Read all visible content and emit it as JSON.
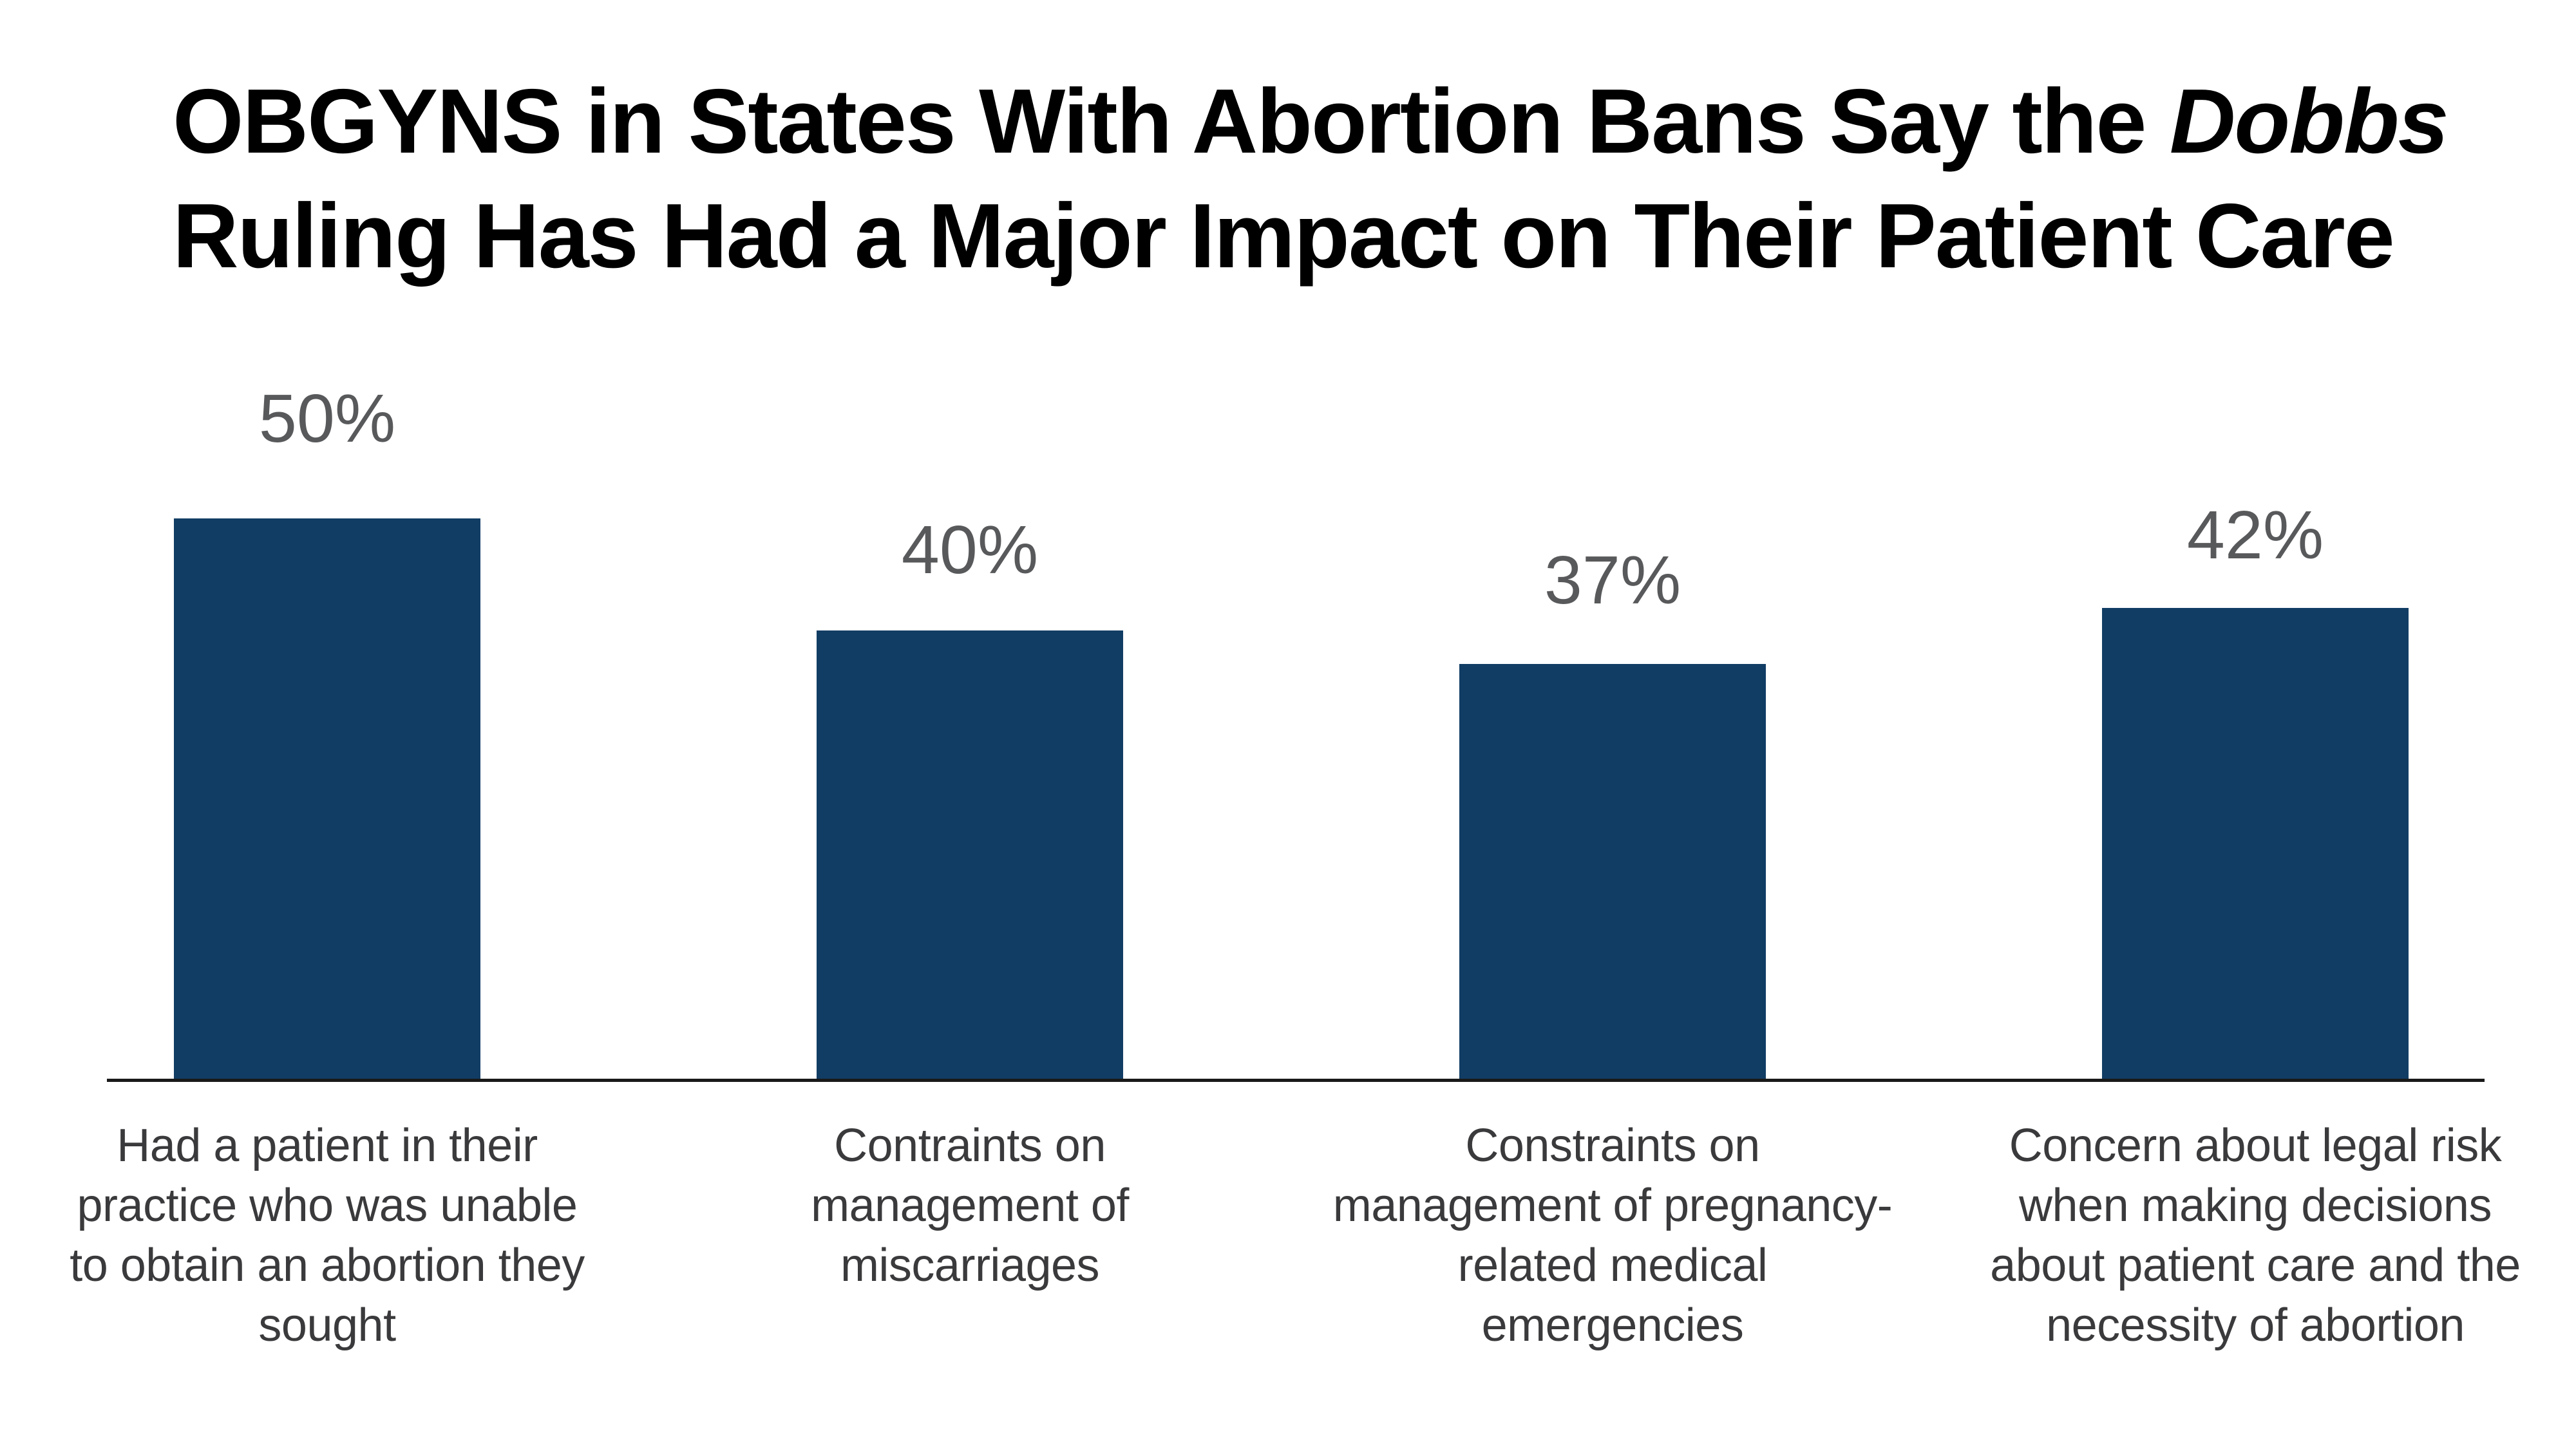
{
  "title": {
    "line1_prefix": "OBGYNS in States With Abortion Bans Say the ",
    "line1_italic": "Dobbs",
    "line2": "Ruling Has Had a Major Impact on Their Patient Care"
  },
  "chart_data": {
    "type": "bar",
    "title": "OBGYNS in States With Abortion Bans Say the Dobbs Ruling Has Had a Major Impact on Their Patient Care",
    "categories": [
      "Had a patient in their\npractice who was unable\nto obtain an abortion they\nsought",
      "Contraints on\nmanagement of\nmiscarriages",
      "Constraints on\nmanagement of pregnancy-\nrelated medical\nemergencies",
      "Concern about legal risk\nwhen making decisions\nabout patient care and the\nnecessity of abortion"
    ],
    "values": [
      50,
      40,
      37,
      42
    ],
    "value_labels": [
      "50%",
      "40%",
      "37%",
      "42%"
    ],
    "xlabel": "",
    "ylabel": "",
    "ylim": [
      0,
      56
    ],
    "grid": false,
    "legend": false,
    "bar_color": "#113d64"
  },
  "colors": {
    "background": "#ffffff",
    "title_text": "#000000",
    "value_label_text": "#58595b",
    "category_label_text": "#3a3a3c",
    "axis_line": "#1a1a1a",
    "bar_fill": "#113d64"
  }
}
